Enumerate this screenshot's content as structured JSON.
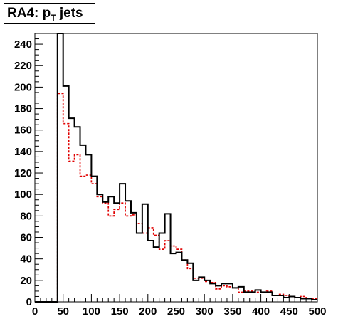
{
  "chart_data": {
    "type": "histogram",
    "title": {
      "main": "RA4: p",
      "subscript": "T",
      "suffix": "jets"
    },
    "xlabel": "",
    "ylabel": "",
    "xlim": [
      0,
      500
    ],
    "ylim": [
      0,
      250
    ],
    "bin_width": 10,
    "x_ticks": [
      0,
      50,
      100,
      150,
      200,
      250,
      300,
      350,
      400,
      450,
      500
    ],
    "y_ticks": [
      0,
      20,
      40,
      60,
      80,
      100,
      120,
      140,
      160,
      180,
      200,
      220,
      240
    ],
    "bin_edges": [
      40,
      50,
      60,
      70,
      80,
      90,
      100,
      110,
      120,
      130,
      140,
      150,
      160,
      170,
      180,
      190,
      200,
      210,
      220,
      230,
      240,
      250,
      260,
      270,
      280,
      290,
      300,
      310,
      320,
      330,
      340,
      350,
      360,
      370,
      380,
      390,
      400,
      410,
      420,
      430,
      440,
      450,
      460,
      470,
      480,
      490,
      500
    ],
    "series": [
      {
        "style": "solid",
        "color": "#000000",
        "values": [
          250,
          201,
          171,
          163,
          146,
          137,
          117,
          100,
          93,
          98,
          92,
          110,
          94,
          83,
          64,
          91,
          57,
          51,
          64,
          82,
          45,
          46,
          39,
          36,
          20,
          23,
          20,
          17,
          15,
          17,
          17,
          13,
          14,
          9,
          9,
          11,
          9,
          9,
          6,
          6,
          4,
          5,
          4,
          3,
          3,
          2
        ]
      },
      {
        "style": "dashed",
        "color": "#e00000",
        "values": [
          194,
          166,
          131,
          137,
          117,
          118,
          110,
          98,
          92,
          80,
          86,
          92,
          80,
          81,
          73,
          64,
          69,
          62,
          49,
          57,
          52,
          49,
          39,
          31,
          22,
          22,
          19,
          18,
          12,
          15,
          14,
          13,
          9,
          10,
          10,
          9,
          9,
          10,
          6,
          7,
          6,
          5,
          4,
          5,
          3,
          3
        ]
      }
    ]
  }
}
